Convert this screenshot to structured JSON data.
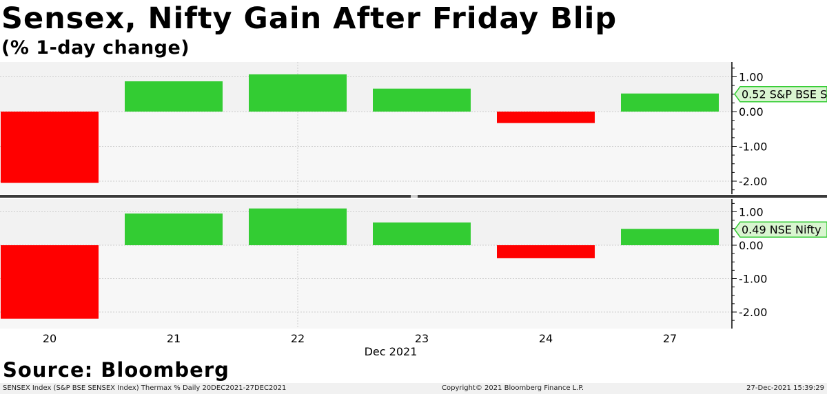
{
  "title": "Sensex, Nifty Gain After Friday Blip",
  "subtitle": "(% 1-day change)",
  "source": "Source: Bloomberg",
  "footer": {
    "left": "SENSEX Index (S&P BSE SENSEX Index) Thermax %  Daily 20DEC2021-27DEC2021",
    "center": "Copyright© 2021 Bloomberg Finance L.P.",
    "right": "27-Dec-2021 15:39:29"
  },
  "colors": {
    "positive": "#33cc33",
    "negative": "#ff0000",
    "label_bg": "#d9f5d0",
    "label_border": "#33cc33",
    "grid": "#cccccc"
  },
  "chart_data": [
    {
      "type": "bar",
      "categories": [
        "20",
        "21",
        "22",
        "23",
        "24",
        "27"
      ],
      "x_month_label": "Dec 2021",
      "series": [
        {
          "name": "S&P BSE S",
          "values": [
            -2.05,
            0.87,
            1.07,
            0.66,
            -0.33,
            0.52
          ]
        }
      ],
      "last_value_label": "0.52 S&P BSE S",
      "yticks": [
        "1.00",
        "0.00",
        "-1.00",
        "-2.00"
      ],
      "ylim": [
        -2.1,
        1.35
      ]
    },
    {
      "type": "bar",
      "categories": [
        "20",
        "21",
        "22",
        "23",
        "24",
        "27"
      ],
      "x_month_label": "Dec 2021",
      "series": [
        {
          "name": "NSE Nifty",
          "values": [
            -2.2,
            0.95,
            1.1,
            0.68,
            -0.39,
            0.49
          ]
        }
      ],
      "last_value_label": "0.49 NSE Nifty",
      "yticks": [
        "1.00",
        "0.00",
        "-1.00",
        "-2.00"
      ],
      "ylim": [
        -2.25,
        1.35
      ]
    }
  ]
}
